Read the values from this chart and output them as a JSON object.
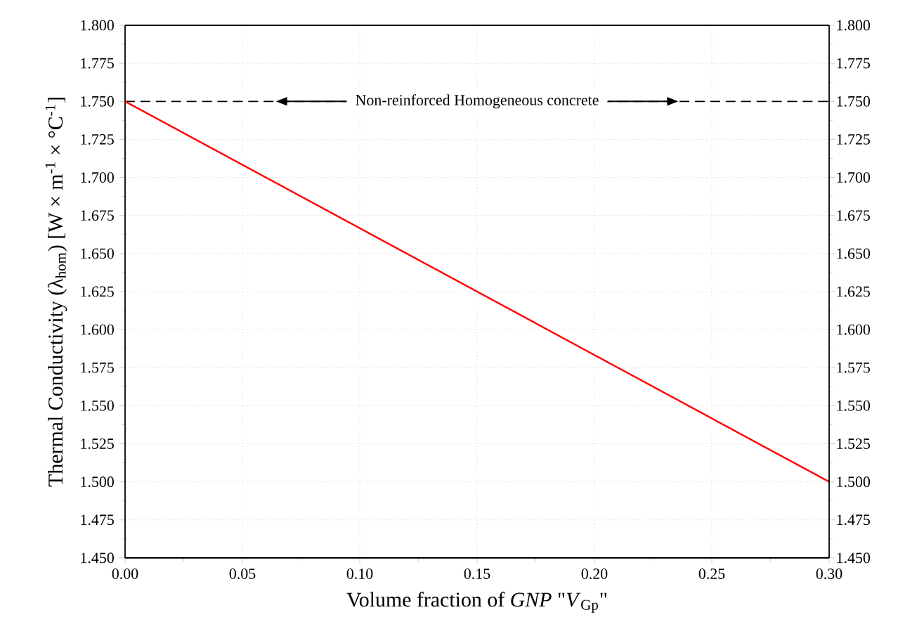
{
  "chart_data": {
    "type": "line",
    "xlabel": "Volume fraction of *GNP* \"*V*$_{Gp}$\"",
    "ylabel": "Thermal Conductivity  (λ$_{hom}$)  [W × m$^{-1}$ × °C$^{-1}$]",
    "series": [
      {
        "x": [
          0,
          0.3
        ],
        "values": [
          1.75,
          1.5
        ],
        "color": "#ff0000",
        "line_style": "solid"
      }
    ],
    "xlim": [
      0,
      0.3
    ],
    "xticks": [
      {
        "value": 0,
        "label": "0.00"
      },
      {
        "value": 0.05,
        "label": "0.05"
      },
      {
        "value": 0.1,
        "label": "0.10"
      },
      {
        "value": 0.15,
        "label": "0.15"
      },
      {
        "value": 0.2,
        "label": "0.20"
      },
      {
        "value": 0.25,
        "label": "0.25"
      },
      {
        "value": 0.3,
        "label": "0.30"
      }
    ],
    "ylim": [
      1.45,
      1.8
    ],
    "yticks": [
      {
        "value": 1.45,
        "label": "1.450"
      },
      {
        "value": 1.475,
        "label": "1.475"
      },
      {
        "value": 1.5,
        "label": "1.500"
      },
      {
        "value": 1.525,
        "label": "1.525"
      },
      {
        "value": 1.55,
        "label": "1.550"
      },
      {
        "value": 1.575,
        "label": "1.575"
      },
      {
        "value": 1.6,
        "label": "1.600"
      },
      {
        "value": 1.625,
        "label": "1.625"
      },
      {
        "value": 1.65,
        "label": "1.650"
      },
      {
        "value": 1.675,
        "label": "1.675"
      },
      {
        "value": 1.7,
        "label": "1.700"
      },
      {
        "value": 1.725,
        "label": "1.725"
      },
      {
        "value": 1.75,
        "label": "1.750"
      },
      {
        "value": 1.775,
        "label": "1.775"
      },
      {
        "value": 1.8,
        "label": "1.800"
      }
    ],
    "y2lim": [
      1.45,
      1.8
    ],
    "y2ticks": [
      {
        "value": 1.45,
        "label": "1.450"
      },
      {
        "value": 1.475,
        "label": "1.475"
      },
      {
        "value": 1.5,
        "label": "1.500"
      },
      {
        "value": 1.525,
        "label": "1.525"
      },
      {
        "value": 1.55,
        "label": "1.550"
      },
      {
        "value": 1.575,
        "label": "1.575"
      },
      {
        "value": 1.6,
        "label": "1.600"
      },
      {
        "value": 1.625,
        "label": "1.625"
      },
      {
        "value": 1.65,
        "label": "1.650"
      },
      {
        "value": 1.675,
        "label": "1.675"
      },
      {
        "value": 1.7,
        "label": "1.700"
      },
      {
        "value": 1.725,
        "label": "1.725"
      },
      {
        "value": 1.75,
        "label": "1.750"
      },
      {
        "value": 1.775,
        "label": "1.775"
      },
      {
        "value": 1.8,
        "label": "1.800"
      }
    ],
    "ref_lines": [
      {
        "axis": "y",
        "value": 1.75,
        "label": "Non-reinforced Homogeneous concrete",
        "color": "#000000",
        "line_style": "dashed"
      }
    ],
    "grid": true,
    "marker": "none"
  }
}
